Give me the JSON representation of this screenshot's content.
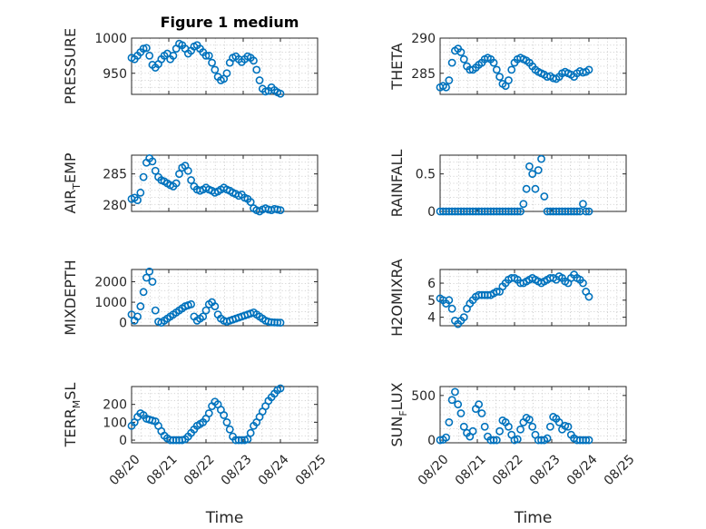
{
  "figure": {
    "title": "Figure 1 medium",
    "colors": {
      "marker": "#0072BD",
      "axis": "#262626",
      "grid": "#c8c8c8"
    }
  },
  "chart_data": [
    {
      "type": "scatter",
      "ylabel": "PRESSURE",
      "ylabel_sub": "",
      "xlim": [
        0,
        5
      ],
      "ylim": [
        920,
        1000
      ],
      "yticks": [
        950,
        1000
      ],
      "xticks": [
        0,
        1,
        2,
        3,
        4,
        5
      ],
      "show_xticklabels": false,
      "x": [
        0,
        0.08,
        0.16,
        0.24,
        0.32,
        0.4,
        0.48,
        0.56,
        0.64,
        0.72,
        0.8,
        0.88,
        0.96,
        1.04,
        1.12,
        1.2,
        1.28,
        1.36,
        1.44,
        1.52,
        1.6,
        1.68,
        1.76,
        1.84,
        1.92,
        2,
        2.08,
        2.16,
        2.24,
        2.32,
        2.4,
        2.48,
        2.56,
        2.64,
        2.72,
        2.8,
        2.88,
        2.96,
        3.04,
        3.12,
        3.2,
        3.28,
        3.36,
        3.44,
        3.52,
        3.6,
        3.68,
        3.76,
        3.84,
        3.92,
        4
      ],
      "y": [
        972,
        970,
        975,
        980,
        985,
        986,
        975,
        962,
        958,
        963,
        970,
        975,
        978,
        970,
        975,
        985,
        992,
        990,
        985,
        978,
        982,
        988,
        990,
        985,
        980,
        975,
        975,
        965,
        955,
        945,
        940,
        942,
        950,
        965,
        972,
        974,
        970,
        966,
        970,
        974,
        972,
        968,
        955,
        940,
        928,
        924,
        925,
        930,
        926,
        923,
        921
      ]
    },
    {
      "type": "scatter",
      "ylabel": "THETA",
      "ylabel_sub": "",
      "xlim": [
        0,
        5
      ],
      "ylim": [
        282,
        290
      ],
      "yticks": [
        285,
        290
      ],
      "xticks": [
        0,
        1,
        2,
        3,
        4,
        5
      ],
      "show_xticklabels": false,
      "x": [
        0,
        0.08,
        0.16,
        0.24,
        0.32,
        0.4,
        0.48,
        0.56,
        0.64,
        0.72,
        0.8,
        0.88,
        0.96,
        1.04,
        1.12,
        1.2,
        1.28,
        1.36,
        1.44,
        1.52,
        1.6,
        1.68,
        1.76,
        1.84,
        1.92,
        2,
        2.08,
        2.16,
        2.24,
        2.32,
        2.4,
        2.48,
        2.56,
        2.64,
        2.72,
        2.8,
        2.88,
        2.96,
        3.04,
        3.12,
        3.2,
        3.28,
        3.36,
        3.44,
        3.52,
        3.6,
        3.68,
        3.76,
        3.84,
        3.92,
        4
      ],
      "y": [
        283,
        283.2,
        283,
        284,
        286.5,
        288.2,
        288.5,
        288,
        287,
        286,
        285.5,
        285.5,
        285.8,
        286.2,
        286.5,
        287,
        287.2,
        287,
        286.5,
        285.5,
        284.5,
        283.5,
        283.2,
        284,
        285.5,
        286.5,
        287,
        287.2,
        287,
        286.8,
        286.5,
        286,
        285.5,
        285.2,
        285,
        284.8,
        284.5,
        284.6,
        284.3,
        284.2,
        284.5,
        285,
        285.2,
        285,
        284.8,
        284.5,
        285,
        285.3,
        285.1,
        285.2,
        285.5
      ]
    },
    {
      "type": "scatter",
      "ylabel": "AIR",
      "ylabel_sub": "T",
      "ylabel_tail": "EMP",
      "xlim": [
        0,
        5
      ],
      "ylim": [
        279,
        288
      ],
      "yticks": [
        280,
        285
      ],
      "xticks": [
        0,
        1,
        2,
        3,
        4,
        5
      ],
      "show_xticklabels": false,
      "x": [
        0,
        0.08,
        0.16,
        0.24,
        0.32,
        0.4,
        0.48,
        0.56,
        0.64,
        0.72,
        0.8,
        0.88,
        0.96,
        1.04,
        1.12,
        1.2,
        1.28,
        1.36,
        1.44,
        1.52,
        1.6,
        1.68,
        1.76,
        1.84,
        1.92,
        2,
        2.08,
        2.16,
        2.24,
        2.32,
        2.4,
        2.48,
        2.56,
        2.64,
        2.72,
        2.8,
        2.88,
        2.96,
        3.04,
        3.12,
        3.2,
        3.28,
        3.36,
        3.44,
        3.52,
        3.6,
        3.68,
        3.76,
        3.84,
        3.92,
        4
      ],
      "y": [
        281,
        281.2,
        280.8,
        282,
        284.5,
        286.8,
        287.5,
        287,
        285.5,
        284.5,
        284,
        283.8,
        283.5,
        283.2,
        283,
        283.5,
        285,
        286,
        286.3,
        285.5,
        284,
        283,
        282.5,
        282.3,
        282.5,
        282.8,
        282.5,
        282.3,
        282,
        282.2,
        282.5,
        282.8,
        282.5,
        282.3,
        282,
        281.8,
        281.5,
        281.7,
        281.2,
        281,
        280.5,
        279.5,
        279.2,
        279,
        279.3,
        279.5,
        279.3,
        279.2,
        279.4,
        279.3,
        279.2
      ]
    },
    {
      "type": "scatter",
      "ylabel": "RAINFALL",
      "ylabel_sub": "",
      "xlim": [
        0,
        5
      ],
      "ylim": [
        0,
        0.75
      ],
      "yticks": [
        0,
        0.5
      ],
      "xticks": [
        0,
        1,
        2,
        3,
        4,
        5
      ],
      "show_xticklabels": false,
      "x": [
        0,
        0.08,
        0.16,
        0.24,
        0.32,
        0.4,
        0.48,
        0.56,
        0.64,
        0.72,
        0.8,
        0.88,
        0.96,
        1.04,
        1.12,
        1.2,
        1.28,
        1.36,
        1.44,
        1.52,
        1.6,
        1.68,
        1.76,
        1.84,
        1.92,
        2,
        2.08,
        2.16,
        2.24,
        2.32,
        2.4,
        2.48,
        2.56,
        2.64,
        2.72,
        2.8,
        2.88,
        2.96,
        3.04,
        3.12,
        3.2,
        3.28,
        3.36,
        3.44,
        3.52,
        3.6,
        3.68,
        3.76,
        3.84,
        3.92,
        4
      ],
      "y": [
        0,
        0,
        0,
        0,
        0,
        0,
        0,
        0,
        0,
        0,
        0,
        0,
        0,
        0,
        0,
        0,
        0,
        0,
        0,
        0,
        0,
        0,
        0,
        0,
        0,
        0,
        0,
        0,
        0.1,
        0.3,
        0.6,
        0.5,
        0.3,
        0.55,
        0.7,
        0.2,
        0,
        0,
        0,
        0,
        0,
        0,
        0,
        0,
        0,
        0,
        0,
        0,
        0.1,
        0,
        0
      ]
    },
    {
      "type": "scatter",
      "ylabel": "MIXDEPTH",
      "ylabel_sub": "",
      "xlim": [
        0,
        5
      ],
      "ylim": [
        -150,
        2600
      ],
      "yticks": [
        0,
        1000,
        2000
      ],
      "xticks": [
        0,
        1,
        2,
        3,
        4,
        5
      ],
      "show_xticklabels": false,
      "x": [
        0,
        0.08,
        0.16,
        0.24,
        0.32,
        0.4,
        0.48,
        0.56,
        0.64,
        0.72,
        0.8,
        0.88,
        0.96,
        1.04,
        1.12,
        1.2,
        1.28,
        1.36,
        1.44,
        1.52,
        1.6,
        1.68,
        1.76,
        1.84,
        1.92,
        2,
        2.08,
        2.16,
        2.24,
        2.32,
        2.4,
        2.48,
        2.56,
        2.64,
        2.72,
        2.8,
        2.88,
        2.96,
        3.04,
        3.12,
        3.2,
        3.28,
        3.36,
        3.44,
        3.52,
        3.6,
        3.68,
        3.76,
        3.84,
        3.92,
        4
      ],
      "y": [
        400,
        100,
        300,
        800,
        1500,
        2200,
        2500,
        2000,
        600,
        50,
        0,
        100,
        200,
        300,
        400,
        500,
        600,
        700,
        800,
        850,
        900,
        300,
        100,
        200,
        300,
        600,
        900,
        1000,
        800,
        400,
        200,
        100,
        50,
        100,
        150,
        200,
        250,
        300,
        350,
        400,
        450,
        500,
        400,
        300,
        200,
        100,
        50,
        20,
        10,
        5,
        0
      ]
    },
    {
      "type": "scatter",
      "ylabel": "H2OMIXRA",
      "ylabel_sub": "",
      "xlim": [
        0,
        5
      ],
      "ylim": [
        3.5,
        6.8
      ],
      "yticks": [
        4,
        5,
        6
      ],
      "xticks": [
        0,
        1,
        2,
        3,
        4,
        5
      ],
      "show_xticklabels": false,
      "x": [
        0,
        0.08,
        0.16,
        0.24,
        0.32,
        0.4,
        0.48,
        0.56,
        0.64,
        0.72,
        0.8,
        0.88,
        0.96,
        1.04,
        1.12,
        1.2,
        1.28,
        1.36,
        1.44,
        1.52,
        1.6,
        1.68,
        1.76,
        1.84,
        1.92,
        2,
        2.08,
        2.16,
        2.24,
        2.32,
        2.4,
        2.48,
        2.56,
        2.64,
        2.72,
        2.8,
        2.88,
        2.96,
        3.04,
        3.12,
        3.2,
        3.28,
        3.36,
        3.44,
        3.52,
        3.6,
        3.68,
        3.76,
        3.84,
        3.92,
        4
      ],
      "y": [
        5.1,
        5,
        4.8,
        5,
        4.5,
        3.8,
        3.6,
        3.8,
        4,
        4.5,
        4.8,
        5,
        5.2,
        5.3,
        5.3,
        5.3,
        5.3,
        5.3,
        5.4,
        5.5,
        5.5,
        5.8,
        6,
        6.2,
        6.3,
        6.3,
        6.2,
        6,
        6,
        6.1,
        6.2,
        6.3,
        6.2,
        6.1,
        6,
        6.1,
        6.2,
        6.3,
        6.3,
        6.2,
        6.4,
        6.3,
        6.1,
        6,
        6.3,
        6.5,
        6.3,
        6.2,
        6,
        5.5,
        5.2
      ]
    },
    {
      "type": "scatter",
      "ylabel": "TERR",
      "ylabel_sub": "M",
      "ylabel_tail": "SL",
      "xlim": [
        0,
        5
      ],
      "ylim": [
        -15,
        300
      ],
      "yticks": [
        0,
        100,
        200
      ],
      "xticks": [
        0,
        1,
        2,
        3,
        4,
        5
      ],
      "show_xticklabels": true,
      "xticklabels": [
        "08/20",
        "08/21",
        "08/22",
        "08/23",
        "08/24",
        "08/25"
      ],
      "xlabel": "Time",
      "x": [
        0,
        0.08,
        0.16,
        0.24,
        0.32,
        0.4,
        0.48,
        0.56,
        0.64,
        0.72,
        0.8,
        0.88,
        0.96,
        1.04,
        1.12,
        1.2,
        1.28,
        1.36,
        1.44,
        1.52,
        1.6,
        1.68,
        1.76,
        1.84,
        1.92,
        2,
        2.08,
        2.16,
        2.24,
        2.32,
        2.4,
        2.48,
        2.56,
        2.64,
        2.72,
        2.8,
        2.88,
        2.96,
        3.04,
        3.12,
        3.2,
        3.28,
        3.36,
        3.44,
        3.52,
        3.6,
        3.68,
        3.76,
        3.84,
        3.92,
        4
      ],
      "y": [
        80,
        100,
        130,
        150,
        140,
        120,
        115,
        110,
        105,
        80,
        50,
        25,
        10,
        0,
        0,
        0,
        0,
        0,
        5,
        20,
        40,
        60,
        80,
        90,
        100,
        120,
        150,
        190,
        215,
        200,
        170,
        140,
        100,
        60,
        20,
        0,
        0,
        0,
        0,
        5,
        40,
        80,
        100,
        130,
        160,
        190,
        220,
        240,
        260,
        280,
        290
      ]
    },
    {
      "type": "scatter",
      "ylabel": "SUN",
      "ylabel_sub": "F",
      "ylabel_tail": "LUX",
      "xlim": [
        0,
        5
      ],
      "ylim": [
        -30,
        600
      ],
      "yticks": [
        0,
        500
      ],
      "xticks": [
        0,
        1,
        2,
        3,
        4,
        5
      ],
      "show_xticklabels": true,
      "xticklabels": [
        "08/20",
        "08/21",
        "08/22",
        "08/23",
        "08/24",
        "08/25"
      ],
      "xlabel": "Time",
      "x": [
        0,
        0.08,
        0.16,
        0.24,
        0.32,
        0.4,
        0.48,
        0.56,
        0.64,
        0.72,
        0.8,
        0.88,
        0.96,
        1.04,
        1.12,
        1.2,
        1.28,
        1.36,
        1.44,
        1.52,
        1.6,
        1.68,
        1.76,
        1.84,
        1.92,
        2,
        2.08,
        2.16,
        2.24,
        2.32,
        2.4,
        2.48,
        2.56,
        2.64,
        2.72,
        2.8,
        2.88,
        2.96,
        3.04,
        3.12,
        3.2,
        3.28,
        3.36,
        3.44,
        3.52,
        3.6,
        3.68,
        3.76,
        3.84,
        3.92,
        4
      ],
      "y": [
        0,
        5,
        30,
        200,
        450,
        540,
        400,
        300,
        150,
        80,
        40,
        100,
        350,
        400,
        300,
        150,
        40,
        0,
        0,
        0,
        100,
        220,
        200,
        150,
        60,
        0,
        10,
        120,
        200,
        250,
        230,
        150,
        60,
        0,
        0,
        0,
        20,
        150,
        260,
        240,
        200,
        120,
        160,
        150,
        60,
        20,
        0,
        0,
        0,
        0,
        0
      ]
    }
  ]
}
